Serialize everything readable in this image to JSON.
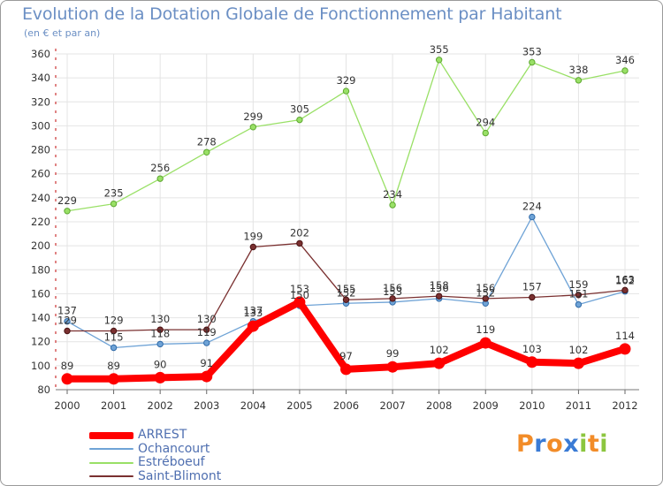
{
  "header": {
    "title": "Evolution de la Dotation Globale de Fonctionnement par Habitant",
    "subtitle": "(en € et par an)"
  },
  "brand": {
    "letters": [
      "P",
      "r",
      "o",
      "x",
      "i",
      "t",
      "i"
    ]
  },
  "colors": {
    "axis": "#cc3333",
    "grid": "#e4e4e4",
    "ARREST": "#ff0000",
    "Ochancourt": "#6fa3d6",
    "Estréboeuf": "#99e066",
    "Saint-Blimont": "#7a3030",
    "brand": [
      "#f28c28",
      "#3a7bd5",
      "#f28c28",
      "#3a7bd5",
      "#8cc63f",
      "#f28c28",
      "#8cc63f"
    ]
  },
  "chart_data": {
    "type": "line",
    "title": "Evolution de la Dotation Globale de Fonctionnement par Habitant",
    "subtitle": "(en € et par an)",
    "xlabel": "",
    "ylabel": "",
    "x": [
      "2000",
      "2001",
      "2002",
      "2003",
      "2004",
      "2005",
      "2006",
      "2007",
      "2008",
      "2009",
      "2010",
      "2011",
      "2012"
    ],
    "ylim": [
      80,
      360
    ],
    "yticks": [
      80,
      100,
      120,
      140,
      160,
      180,
      200,
      220,
      240,
      260,
      280,
      300,
      320,
      340,
      360
    ],
    "grid": true,
    "legend_position": "bottom-left",
    "series": [
      {
        "name": "ARREST",
        "values": [
          89,
          89,
          90,
          91,
          133,
          153,
          97,
          99,
          102,
          119,
          103,
          102,
          114
        ]
      },
      {
        "name": "Ochancourt",
        "values": [
          137,
          115,
          118,
          119,
          137,
          150,
          152,
          153,
          156,
          152,
          224,
          151,
          162
        ]
      },
      {
        "name": "Estréboeuf",
        "values": [
          229,
          235,
          256,
          278,
          299,
          305,
          329,
          234,
          355,
          294,
          353,
          338,
          346
        ]
      },
      {
        "name": "Saint-Blimont",
        "values": [
          129,
          129,
          130,
          130,
          199,
          202,
          155,
          156,
          158,
          156,
          157,
          159,
          163
        ]
      }
    ]
  }
}
